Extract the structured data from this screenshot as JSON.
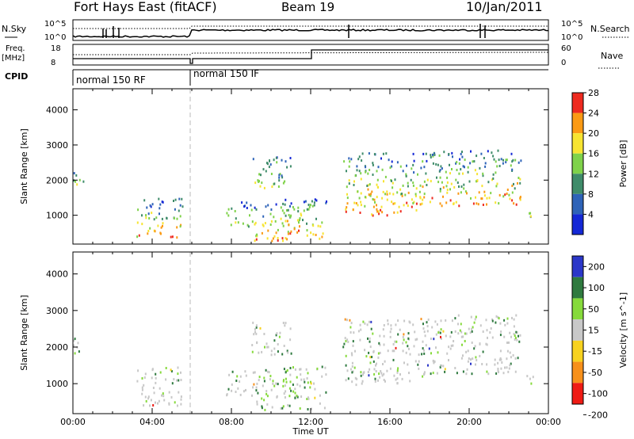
{
  "header": {
    "station": "Fort Hays East (fitACF)",
    "beam": "Beam 19",
    "date": "10/Jan/2011"
  },
  "strip_labels": {
    "nsky": "N.Sky",
    "nsky_ticks": [
      "10^5",
      "10^0"
    ],
    "nsearch": "N.Search",
    "nsearch_ticks": [
      "10^5",
      "10^0"
    ],
    "freq": "Freq.",
    "freq_unit": "[MHz]",
    "freq_ticks": [
      "18",
      "8"
    ],
    "nave": "Nave",
    "nave_ticks": [
      "60",
      "0"
    ],
    "cpid": "CPID",
    "cpid_modes": [
      "normal 150 RF",
      "normal 150 IF"
    ]
  },
  "chart_data": [
    {
      "type": "heatmap",
      "panel": "power",
      "ylabel": "Slant Range [km]",
      "yticks": [
        "1000",
        "2000",
        "3000",
        "4000"
      ],
      "ylim": [
        180,
        4600
      ],
      "xlim": [
        0,
        24
      ],
      "colorbar_label": "Power [dB]",
      "colorbar_ticks": [
        "4",
        "8",
        "12",
        "16",
        "20",
        "24",
        "28"
      ],
      "colors": [
        "#1428d6",
        "#2e63b8",
        "#3f8c6a",
        "#7fd24a",
        "#f7e431",
        "#fb9a14",
        "#ee2a1f"
      ],
      "echo_regions": [
        {
          "t0": 0.0,
          "t1": 0.6,
          "r0": 1800,
          "r1": 2300,
          "peak": 0.6
        },
        {
          "t0": 3.2,
          "t1": 5.5,
          "r0": 400,
          "r1": 1500,
          "peak": 0.75
        },
        {
          "t0": 7.7,
          "t1": 9.0,
          "r0": 700,
          "r1": 1400,
          "peak": 0.4
        },
        {
          "t0": 9.0,
          "t1": 11.0,
          "r0": 300,
          "r1": 1400,
          "peak": 0.8
        },
        {
          "t0": 10.5,
          "t1": 12.8,
          "r0": 300,
          "r1": 1500,
          "peak": 0.9
        },
        {
          "t0": 9.0,
          "t1": 11.0,
          "r0": 1800,
          "r1": 2700,
          "peak": 0.45
        },
        {
          "t0": 13.6,
          "t1": 18.0,
          "r0": 1000,
          "r1": 2800,
          "peak": 0.9
        },
        {
          "t0": 18.0,
          "t1": 22.6,
          "r0": 1300,
          "r1": 2900,
          "peak": 0.8
        },
        {
          "t0": 22.8,
          "t1": 23.3,
          "r0": 900,
          "r1": 1300,
          "peak": 0.35
        }
      ]
    },
    {
      "type": "heatmap",
      "panel": "velocity",
      "ylabel": "Slant Range [km]",
      "yticks": [
        "1000",
        "2000",
        "3000",
        "4000"
      ],
      "ylim": [
        180,
        4600
      ],
      "xlim": [
        0,
        24
      ],
      "xlabel": "Time UT",
      "xticks": [
        "00:00",
        "04:00",
        "08:00",
        "12:00",
        "16:00",
        "20:00",
        "00:00"
      ],
      "colorbar_label": "Velocity [m s^-1]",
      "colorbar_ticks": [
        "200",
        "100",
        "50",
        "15",
        "-15",
        "-50",
        "-100",
        "-200"
      ],
      "colors": [
        "#2b37c9",
        "#2f7a3f",
        "#86da3b",
        "#c8c8c8",
        "#f7d21f",
        "#f7901a",
        "#ef1b14"
      ],
      "echo_regions": [
        {
          "t0": 0.0,
          "t1": 0.6,
          "r0": 1800,
          "r1": 2300,
          "peak": 0.3
        },
        {
          "t0": 3.2,
          "t1": 5.5,
          "r0": 400,
          "r1": 1500,
          "peak": 0.3
        },
        {
          "t0": 7.7,
          "t1": 9.0,
          "r0": 700,
          "r1": 1400,
          "peak": 0.3
        },
        {
          "t0": 9.0,
          "t1": 11.0,
          "r0": 300,
          "r1": 1400,
          "peak": 0.55
        },
        {
          "t0": 10.5,
          "t1": 12.8,
          "r0": 300,
          "r1": 1500,
          "peak": 0.55
        },
        {
          "t0": 9.0,
          "t1": 11.0,
          "r0": 1800,
          "r1": 2700,
          "peak": 0.3
        },
        {
          "t0": 13.6,
          "t1": 18.0,
          "r0": 1000,
          "r1": 2800,
          "peak": 0.3
        },
        {
          "t0": 18.0,
          "t1": 22.6,
          "r0": 1300,
          "r1": 2900,
          "peak": 0.3
        },
        {
          "t0": 22.8,
          "t1": 23.3,
          "r0": 900,
          "r1": 1300,
          "peak": 0.3
        }
      ]
    }
  ]
}
